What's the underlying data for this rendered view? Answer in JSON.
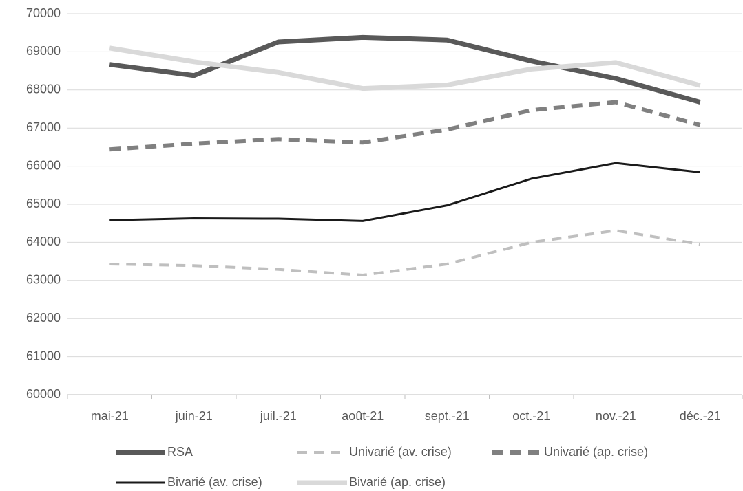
{
  "chart_data": {
    "type": "line",
    "categories": [
      "mai-21",
      "juin-21",
      "juil.-21",
      "août-21",
      "sept.-21",
      "oct.-21",
      "nov.-21",
      "déc.-21"
    ],
    "series": [
      {
        "name": "RSA",
        "color": "#595959",
        "dash": false,
        "values": [
          68670,
          68380,
          69260,
          69380,
          69310,
          68760,
          68300,
          67680
        ]
      },
      {
        "name": "Univarié (av. crise)",
        "color": "#bfbfbf",
        "dash": true,
        "values": [
          63430,
          63390,
          63290,
          63140,
          63430,
          64000,
          64310,
          63950
        ]
      },
      {
        "name": "Univarié (ap. crise)",
        "color": "#808080",
        "dash": true,
        "values": [
          66440,
          66590,
          66710,
          66620,
          66960,
          67470,
          67680,
          67080
        ]
      },
      {
        "name": "Bivarié (av. crise)",
        "color": "#1a1a1a",
        "dash": false,
        "values": [
          64580,
          64630,
          64620,
          64560,
          64970,
          65670,
          66080,
          65840
        ]
      },
      {
        "name": "Bivarié (ap. crise)",
        "color": "#d9d9d9",
        "dash": false,
        "values": [
          69100,
          68740,
          68460,
          68040,
          68130,
          68550,
          68720,
          68120
        ]
      }
    ],
    "ylim": [
      60000,
      70000
    ],
    "yticks": [
      60000,
      61000,
      62000,
      63000,
      64000,
      65000,
      66000,
      67000,
      68000,
      69000,
      70000
    ],
    "grid": true,
    "legend": "bottom"
  }
}
